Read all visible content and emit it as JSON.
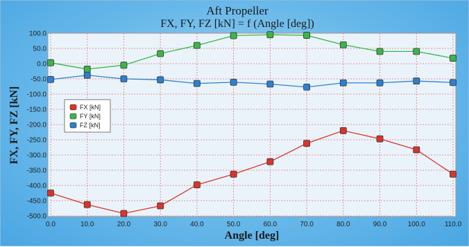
{
  "chart_data": {
    "type": "line",
    "title": "Aft Propeller",
    "subtitle": "FX, FY, FZ [kN] = f (Angle [deg])",
    "xlabel": "Angle [deg]",
    "ylabel": "FX, FY, FZ [kN]",
    "x": [
      0,
      10,
      20,
      30,
      40,
      50,
      60,
      70,
      80,
      90,
      100,
      110
    ],
    "x_tick_labels": [
      "0.0",
      "10.0",
      "20.0",
      "30.0",
      "40.0",
      "50.0",
      "60.0",
      "70.0",
      "80.0",
      "90.0",
      "100.0",
      "110.0"
    ],
    "y_tick_values": [
      100,
      50,
      0,
      -50,
      -100,
      -150,
      -200,
      -250,
      -300,
      -350,
      -400,
      -450,
      -500
    ],
    "y_tick_labels": [
      "100.0",
      "50.0",
      "0.0",
      "-50.0",
      "-100.0",
      "-150.0",
      "-200.0",
      "-250.0",
      "-300.0",
      "-350.0",
      "-400.0",
      "-450.0",
      "-500.0"
    ],
    "xlim": [
      0,
      110
    ],
    "ylim": [
      -500,
      100
    ],
    "grid": true,
    "legend_position": "middle-left",
    "series": [
      {
        "name": "FX [kN]",
        "color": "#d9342b",
        "values": [
          -425,
          -463,
          -492,
          -467,
          -398,
          -363,
          -322,
          -262,
          -220,
          -247,
          -283,
          -363
        ]
      },
      {
        "name": "FY [kN]",
        "color": "#3cb44a",
        "values": [
          3,
          -18,
          -5,
          33,
          60,
          92,
          95,
          93,
          62,
          40,
          40,
          18
        ]
      },
      {
        "name": "FZ [kN]",
        "color": "#2e7fcf",
        "values": [
          -52,
          -38,
          -50,
          -53,
          -65,
          -61,
          -67,
          -77,
          -63,
          -63,
          -57,
          -62
        ]
      }
    ]
  }
}
